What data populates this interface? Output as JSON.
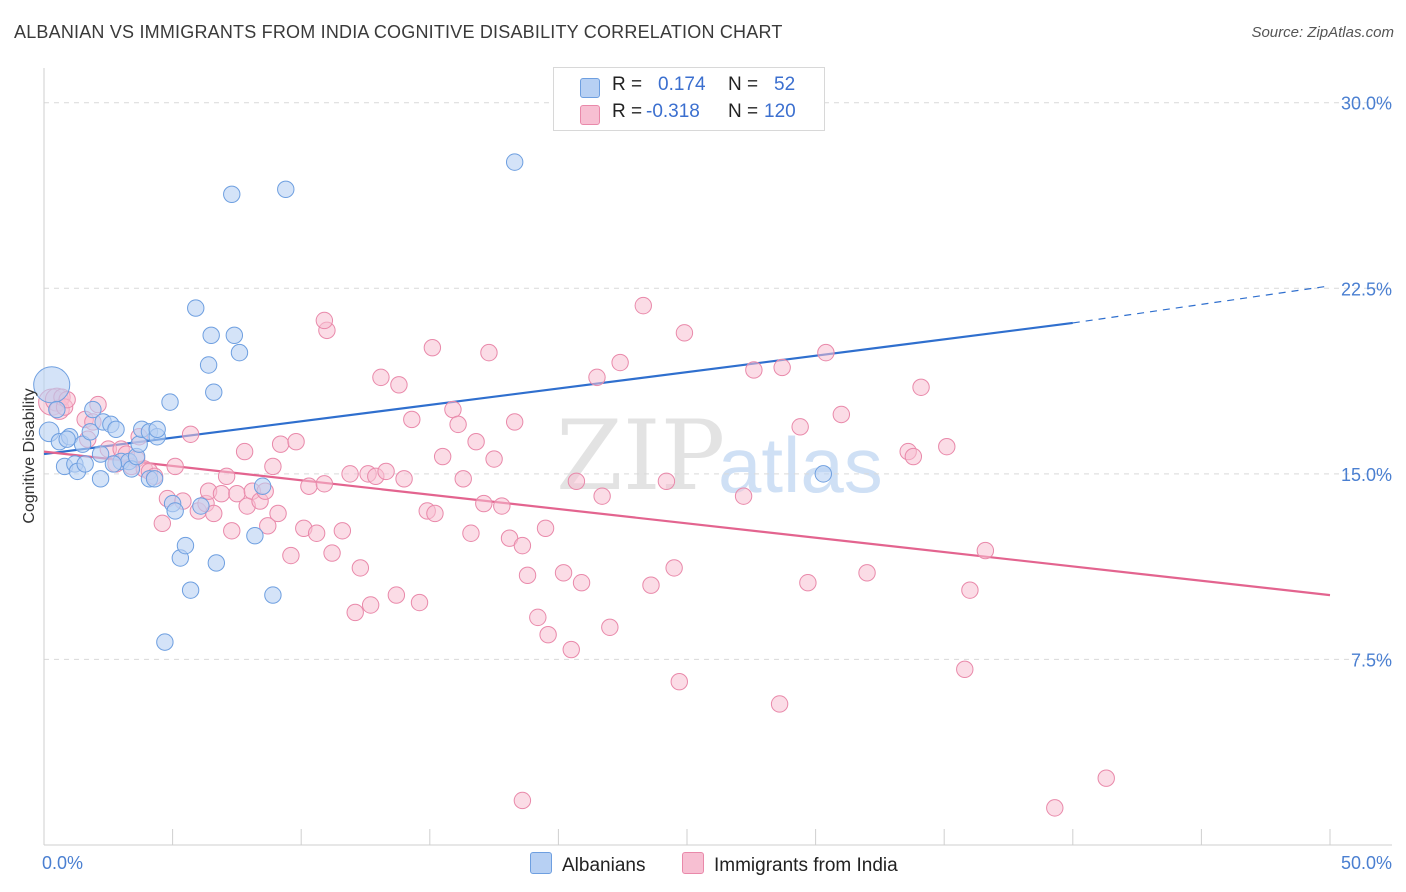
{
  "title": "ALBANIAN VS IMMIGRANTS FROM INDIA COGNITIVE DISABILITY CORRELATION CHART",
  "source": "Source: ZipAtlas.com",
  "watermark": {
    "zip": "ZIP",
    "atlas": "atlas"
  },
  "legend": {
    "albanians": {
      "r_label": "R =",
      "r_value": "0.174",
      "n_label": "N =",
      "n_value": "52"
    },
    "india": {
      "r_label": "R =",
      "r_value": "-0.318",
      "n_label": "N =",
      "n_value": "120"
    }
  },
  "bottom_legend": {
    "albanians": "Albanians",
    "india": "Immigrants from India"
  },
  "colors": {
    "albanians_fill": "#b7d0f3",
    "albanians_stroke": "#6e9fe0",
    "albanians_line": "#2f6fce",
    "india_fill": "#f7bfd2",
    "india_stroke": "#e989aa",
    "india_line": "#e3648f",
    "tick_text": "#4a7fd1",
    "grid": "#d9d9d9"
  },
  "chart_data": {
    "type": "scatter",
    "title": "ALBANIAN VS IMMIGRANTS FROM INDIA COGNITIVE DISABILITY CORRELATION CHART",
    "xlabel": "",
    "ylabel": "Cognitive Disability",
    "xlim": [
      0,
      50
    ],
    "ylim": [
      0,
      31
    ],
    "x_tick_labels": [
      "0.0%",
      "50.0%"
    ],
    "y_ticks": [
      7.5,
      15.0,
      22.5,
      30.0
    ],
    "y_tick_labels": [
      "7.5%",
      "15.0%",
      "22.5%",
      "30.0%"
    ],
    "series": [
      {
        "name": "Albanians",
        "r": 0.174,
        "n": 52,
        "trend": {
          "x0": 0,
          "y0": 15.8,
          "x1": 40,
          "y1": 21.1,
          "dash_x1": 50,
          "dash_y1": 22.6
        },
        "points": [
          [
            0.3,
            18.6,
            22
          ],
          [
            0.2,
            16.7,
            12
          ],
          [
            0.5,
            17.6,
            10
          ],
          [
            0.6,
            16.3,
            10
          ],
          [
            0.8,
            15.3,
            10
          ],
          [
            1.0,
            16.5,
            10
          ],
          [
            1.2,
            15.4,
            10
          ],
          [
            1.3,
            15.1,
            10
          ],
          [
            1.5,
            16.2,
            10
          ],
          [
            1.6,
            15.4,
            10
          ],
          [
            1.8,
            16.7,
            10
          ],
          [
            1.9,
            17.6,
            10
          ],
          [
            2.2,
            15.8,
            10
          ],
          [
            2.3,
            17.1,
            10
          ],
          [
            2.6,
            17.0,
            10
          ],
          [
            2.8,
            16.8,
            10
          ],
          [
            3.0,
            15.5,
            10
          ],
          [
            3.3,
            15.5,
            10
          ],
          [
            3.4,
            15.2,
            10
          ],
          [
            3.6,
            15.7,
            10
          ],
          [
            3.7,
            16.2,
            10
          ],
          [
            3.8,
            16.8,
            10
          ],
          [
            4.1,
            16.7,
            10
          ],
          [
            4.1,
            14.8,
            10
          ],
          [
            4.4,
            16.5,
            10
          ],
          [
            4.4,
            16.8,
            10
          ],
          [
            2.2,
            14.8,
            10
          ],
          [
            4.3,
            14.8,
            10
          ],
          [
            4.7,
            8.2,
            10
          ],
          [
            4.9,
            17.9,
            10
          ],
          [
            5.0,
            13.8,
            10
          ],
          [
            5.1,
            13.5,
            10
          ],
          [
            5.3,
            11.6,
            10
          ],
          [
            5.5,
            12.1,
            10
          ],
          [
            5.7,
            10.3,
            10
          ],
          [
            5.9,
            21.7,
            10
          ],
          [
            6.1,
            13.7,
            10
          ],
          [
            6.4,
            19.4,
            10
          ],
          [
            6.5,
            20.6,
            10
          ],
          [
            6.6,
            18.3,
            10
          ],
          [
            6.7,
            11.4,
            10
          ],
          [
            7.3,
            26.3,
            10
          ],
          [
            7.4,
            20.6,
            10
          ],
          [
            7.6,
            19.9,
            10
          ],
          [
            8.2,
            12.5,
            10
          ],
          [
            8.5,
            14.5,
            10
          ],
          [
            8.9,
            10.1,
            10
          ],
          [
            9.4,
            26.5,
            10
          ],
          [
            18.3,
            27.6,
            10
          ],
          [
            30.3,
            15.0,
            10
          ],
          [
            0.9,
            16.4,
            10
          ],
          [
            2.7,
            15.4,
            10
          ]
        ]
      },
      {
        "name": "Immigrants from India",
        "r": -0.318,
        "n": 120,
        "trend": {
          "x0": 0,
          "y0": 15.9,
          "x1": 50,
          "y1": 10.1
        },
        "points": [
          [
            0.3,
            17.9,
            16
          ],
          [
            0.5,
            18.0,
            14
          ],
          [
            0.6,
            17.6,
            12
          ],
          [
            0.7,
            18.1,
            10
          ],
          [
            0.8,
            17.7,
            10
          ],
          [
            0.9,
            18.0,
            10
          ],
          [
            1.6,
            17.2,
            10
          ],
          [
            1.7,
            16.4,
            10
          ],
          [
            1.9,
            17.1,
            10
          ],
          [
            2.1,
            17.8,
            10
          ],
          [
            2.5,
            16.0,
            10
          ],
          [
            2.8,
            15.4,
            10
          ],
          [
            3.0,
            16.0,
            10
          ],
          [
            3.2,
            15.8,
            10
          ],
          [
            3.4,
            15.3,
            10
          ],
          [
            3.6,
            15.6,
            10
          ],
          [
            3.7,
            16.5,
            10
          ],
          [
            3.9,
            15.2,
            10
          ],
          [
            4.1,
            15.1,
            10
          ],
          [
            4.3,
            14.9,
            10
          ],
          [
            4.6,
            13.0,
            10
          ],
          [
            4.8,
            14.0,
            10
          ],
          [
            5.1,
            15.3,
            10
          ],
          [
            5.4,
            13.9,
            10
          ],
          [
            5.7,
            16.6,
            10
          ],
          [
            6.0,
            13.5,
            10
          ],
          [
            6.3,
            13.8,
            10
          ],
          [
            6.4,
            14.3,
            10
          ],
          [
            6.6,
            13.4,
            10
          ],
          [
            6.9,
            14.2,
            10
          ],
          [
            7.1,
            14.9,
            10
          ],
          [
            7.3,
            12.7,
            10
          ],
          [
            7.5,
            14.2,
            10
          ],
          [
            7.8,
            15.9,
            10
          ],
          [
            7.9,
            13.7,
            10
          ],
          [
            8.1,
            14.3,
            10
          ],
          [
            8.4,
            13.9,
            10
          ],
          [
            8.6,
            14.3,
            10
          ],
          [
            8.7,
            12.9,
            10
          ],
          [
            8.9,
            15.3,
            10
          ],
          [
            9.1,
            13.4,
            10
          ],
          [
            9.2,
            16.2,
            10
          ],
          [
            9.6,
            11.7,
            10
          ],
          [
            9.8,
            16.3,
            10
          ],
          [
            10.1,
            12.8,
            10
          ],
          [
            10.3,
            14.5,
            10
          ],
          [
            10.6,
            12.6,
            10
          ],
          [
            10.9,
            14.6,
            10
          ],
          [
            11.0,
            20.8,
            10
          ],
          [
            11.2,
            11.8,
            10
          ],
          [
            11.6,
            12.7,
            10
          ],
          [
            11.9,
            15.0,
            10
          ],
          [
            12.1,
            9.4,
            10
          ],
          [
            12.3,
            11.2,
            10
          ],
          [
            12.6,
            15.0,
            10
          ],
          [
            12.7,
            9.7,
            10
          ],
          [
            12.9,
            14.9,
            10
          ],
          [
            13.1,
            18.9,
            10
          ],
          [
            13.3,
            15.1,
            10
          ],
          [
            13.7,
            10.1,
            10
          ],
          [
            13.8,
            18.6,
            10
          ],
          [
            14.0,
            14.8,
            10
          ],
          [
            14.3,
            17.2,
            10
          ],
          [
            14.6,
            9.8,
            10
          ],
          [
            14.9,
            13.5,
            10
          ],
          [
            15.1,
            20.1,
            10
          ],
          [
            15.2,
            13.4,
            10
          ],
          [
            15.5,
            15.7,
            10
          ],
          [
            15.9,
            17.6,
            10
          ],
          [
            16.1,
            17.0,
            10
          ],
          [
            16.3,
            14.8,
            10
          ],
          [
            16.6,
            12.6,
            10
          ],
          [
            16.8,
            16.3,
            10
          ],
          [
            17.1,
            13.8,
            10
          ],
          [
            17.3,
            19.9,
            10
          ],
          [
            17.5,
            15.6,
            10
          ],
          [
            17.8,
            13.7,
            10
          ],
          [
            18.1,
            12.4,
            10
          ],
          [
            18.3,
            17.1,
            10
          ],
          [
            18.6,
            12.1,
            10
          ],
          [
            18.8,
            10.9,
            10
          ],
          [
            19.2,
            9.2,
            10
          ],
          [
            19.6,
            8.5,
            10
          ],
          [
            19.5,
            12.8,
            10
          ],
          [
            20.2,
            11.0,
            10
          ],
          [
            20.5,
            7.9,
            10
          ],
          [
            20.7,
            14.7,
            10
          ],
          [
            20.9,
            10.6,
            10
          ],
          [
            21.5,
            18.9,
            10
          ],
          [
            21.7,
            14.1,
            10
          ],
          [
            22.0,
            8.8,
            10
          ],
          [
            22.4,
            19.5,
            10
          ],
          [
            23.3,
            21.8,
            10
          ],
          [
            23.6,
            10.5,
            10
          ],
          [
            24.2,
            14.7,
            10
          ],
          [
            24.5,
            11.2,
            10
          ],
          [
            24.7,
            6.6,
            10
          ],
          [
            24.9,
            20.7,
            10
          ],
          [
            27.2,
            14.1,
            10
          ],
          [
            27.6,
            19.2,
            10
          ],
          [
            28.6,
            5.7,
            10
          ],
          [
            28.7,
            19.3,
            10
          ],
          [
            29.4,
            16.9,
            10
          ],
          [
            29.7,
            10.6,
            10
          ],
          [
            30.4,
            19.9,
            10
          ],
          [
            31.0,
            17.4,
            10
          ],
          [
            32.0,
            11.0,
            10
          ],
          [
            33.6,
            15.9,
            10
          ],
          [
            33.8,
            15.7,
            10
          ],
          [
            34.1,
            18.5,
            10
          ],
          [
            35.1,
            16.1,
            10
          ],
          [
            35.8,
            7.1,
            10
          ],
          [
            36.0,
            10.3,
            10
          ],
          [
            36.6,
            11.9,
            10
          ],
          [
            39.3,
            1.5,
            10
          ],
          [
            41.3,
            2.7,
            10
          ],
          [
            18.6,
            1.8,
            10
          ],
          [
            10.9,
            21.2,
            10
          ]
        ]
      }
    ]
  }
}
